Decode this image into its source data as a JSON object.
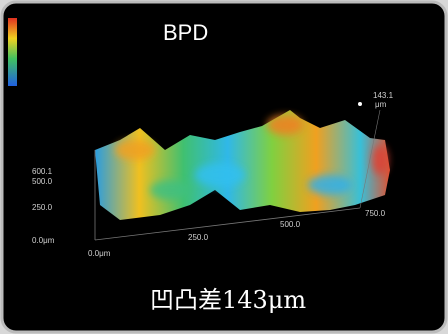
{
  "title": "BPD",
  "plot": {
    "peak_label": "143.1",
    "peak_unit": "μm",
    "z_axis": [
      "600.1",
      "500.0",
      "250.0",
      "0.0μm"
    ],
    "x_axis": [
      "0.0μm",
      "250.0",
      "500.0",
      "750.0"
    ]
  },
  "caption": "凹凸差143μm"
}
